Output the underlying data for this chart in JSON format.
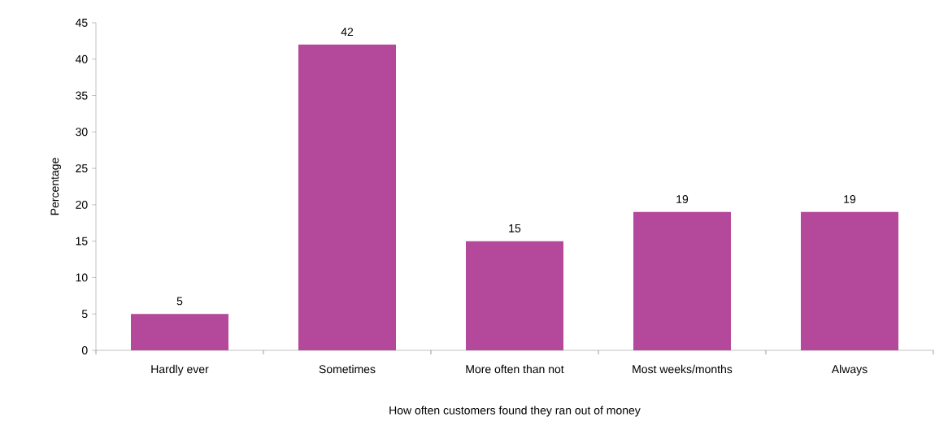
{
  "chart_data": {
    "type": "bar",
    "xlabel": "How often customers found they ran out of money",
    "ylabel": "Percentage",
    "categories": [
      "Hardly ever",
      "Sometimes",
      "More often than not",
      "Most weeks/months",
      "Always"
    ],
    "values": [
      5,
      42,
      15,
      19,
      19
    ],
    "color": "#b4489a",
    "ylim": [
      0,
      45
    ],
    "yticks": [
      0,
      5,
      10,
      15,
      20,
      25,
      30,
      35,
      40,
      45
    ],
    "data_labels": true
  }
}
